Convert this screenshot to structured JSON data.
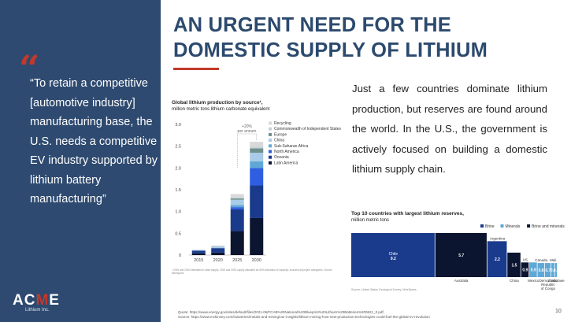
{
  "title_lines": [
    "AN URGENT NEED FOR THE",
    "DOMESTIC SUPPLY OF LITHIUM"
  ],
  "quote_mark": "“",
  "quote": "“To retain a competitive [automotive industry] manufacturing base, the U.S. needs a competitive EV industry supported by lithium battery manufacturing”",
  "logo": {
    "main_a": "AC",
    "main_b": "M",
    "main_c": "E",
    "sub": "Lithium Inc."
  },
  "body": "Just a few countries dominate lithium production, but reserves are found around the world. In the U.S., the government is actively focused on building a domestic lithium supply chain.",
  "chart1_title": {
    "bold": "Global lithium production by source¹,",
    "sub": "million metric tons lithium carbonate equivalent"
  },
  "chart1_footnote": "¹ 2025 and 2030 estimated in base supply; 2025 and 2030 supply allocated as 50% allocation of capacity; includes all project categories. Source: Minespans",
  "chart2_title": {
    "bold": "Top 10 countries with largest lithium reserves,",
    "sub": "million metric tons"
  },
  "chart2_source": "Source: United States Geological Survey, MineSpans",
  "quote_sources": [
    "Quote: https://www.energy.gov/sites/default/files/2021-06/FCAB%20National%20Blueprint%20Lithium%20Batteries%200621_0.pdf;",
    "Source: https://www.mckinsey.com/industries/metals-and-mining/our-insights/lithium-mining-how-new-production-technologies-could-fuel-the-global-ev-revolution"
  ],
  "page_number": "10",
  "chart_data": [
    {
      "type": "bar",
      "stacked": true,
      "categories": [
        "2015",
        "2020",
        "2025",
        "2030"
      ],
      "ylim": [
        0,
        3.0
      ],
      "yticks": [
        "0",
        "0.5",
        "1.0",
        "1.5",
        "2.0",
        "2.5",
        "3.0"
      ],
      "annotation": "+20% per annum",
      "legend_position": "right",
      "series": [
        {
          "name": "Latin America",
          "color": "#0b1530",
          "values": [
            0.04,
            0.06,
            0.55,
            0.85
          ]
        },
        {
          "name": "Oceania",
          "color": "#1a3a8c",
          "values": [
            0.06,
            0.1,
            0.5,
            0.75
          ]
        },
        {
          "name": "North America",
          "color": "#2f5fe0",
          "values": [
            0.0,
            0.0,
            0.05,
            0.4
          ]
        },
        {
          "name": "Sub-Saharan Africa",
          "color": "#5fa8d6",
          "values": [
            0.0,
            0.0,
            0.05,
            0.15
          ]
        },
        {
          "name": "China",
          "color": "#a9cbe8",
          "values": [
            0.02,
            0.04,
            0.12,
            0.2
          ]
        },
        {
          "name": "Europe",
          "color": "#6f8f8c",
          "values": [
            0.0,
            0.0,
            0.03,
            0.1
          ]
        },
        {
          "name": "Commonwealth of Independent States",
          "color": "#c7d3d8",
          "values": [
            0.0,
            0.0,
            0.02,
            0.05
          ]
        },
        {
          "name": "Recycling",
          "color": "#d9d9d9",
          "values": [
            0.0,
            0.02,
            0.08,
            0.1
          ]
        }
      ]
    },
    {
      "type": "treemap",
      "legend": [
        {
          "name": "Brine",
          "color": "#1a3a8c"
        },
        {
          "name": "Minerals",
          "color": "#5fa8d6"
        },
        {
          "name": "Brine and minerals",
          "color": "#0b1530"
        }
      ],
      "items": [
        {
          "name": "Chile",
          "value": 9.2,
          "label": "9.2",
          "type": "Brine"
        },
        {
          "name": "Australia",
          "value": 5.7,
          "label": "5.7",
          "type": "Brine and minerals"
        },
        {
          "name": "Argentina",
          "value": 2.2,
          "label": "2.2",
          "type": "Brine"
        },
        {
          "name": "China",
          "value": 1.5,
          "label": "1.5",
          "type": "Brine and minerals"
        },
        {
          "name": "US",
          "value": 0.9,
          "label": "0.9",
          "type": "Brine and minerals"
        },
        {
          "name": "Mexico",
          "value": 0.9,
          "label": "0.9",
          "type": "Minerals"
        },
        {
          "name": "Canada",
          "value": 0.8,
          "label": "0.8",
          "type": "Minerals"
        },
        {
          "name": "Democratic Republic of Congo",
          "value": 0.7,
          "label": "0.7",
          "type": "Minerals"
        },
        {
          "name": "Mali",
          "value": 0.4,
          "label": "0.4",
          "type": "Minerals"
        },
        {
          "name": "Zimbabwe",
          "value": 0.3,
          "label": "0.3",
          "type": "Minerals"
        }
      ]
    }
  ]
}
